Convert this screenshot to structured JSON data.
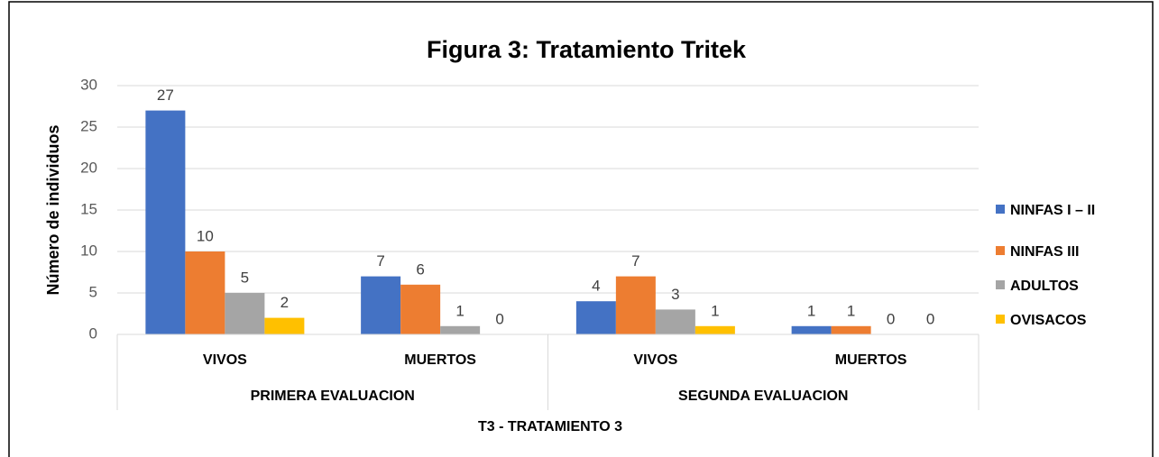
{
  "chart_data": {
    "type": "bar",
    "title": "Figura 3: Tratamiento Tritek",
    "y_label": "Número de individuos",
    "x_label": "T3 - TRATAMIENTO 3",
    "categories": [
      "VIVOS",
      "MUERTOS",
      "VIVOS",
      "MUERTOS"
    ],
    "groups": [
      {
        "name": "PRIMERA EVALUACION",
        "size": 2
      },
      {
        "name": "SEGUNDA EVALUACION",
        "size": 2
      }
    ],
    "series": [
      {
        "name": "NINFAS I – II",
        "color": "#4472c4",
        "values": [
          27,
          7,
          4,
          1
        ]
      },
      {
        "name": "NINFAS III",
        "color": "#ed7d31",
        "values": [
          10,
          6,
          7,
          1
        ]
      },
      {
        "name": "ADULTOS",
        "color": "#a5a5a5",
        "values": [
          5,
          1,
          3,
          0
        ]
      },
      {
        "name": "OVISACOS",
        "color": "#ffc000",
        "values": [
          2,
          0,
          1,
          0
        ]
      }
    ],
    "ylim": [
      0,
      30
    ],
    "yticks": [
      0,
      5,
      10,
      15,
      20,
      25,
      30
    ],
    "grid": true,
    "legend": "right"
  }
}
